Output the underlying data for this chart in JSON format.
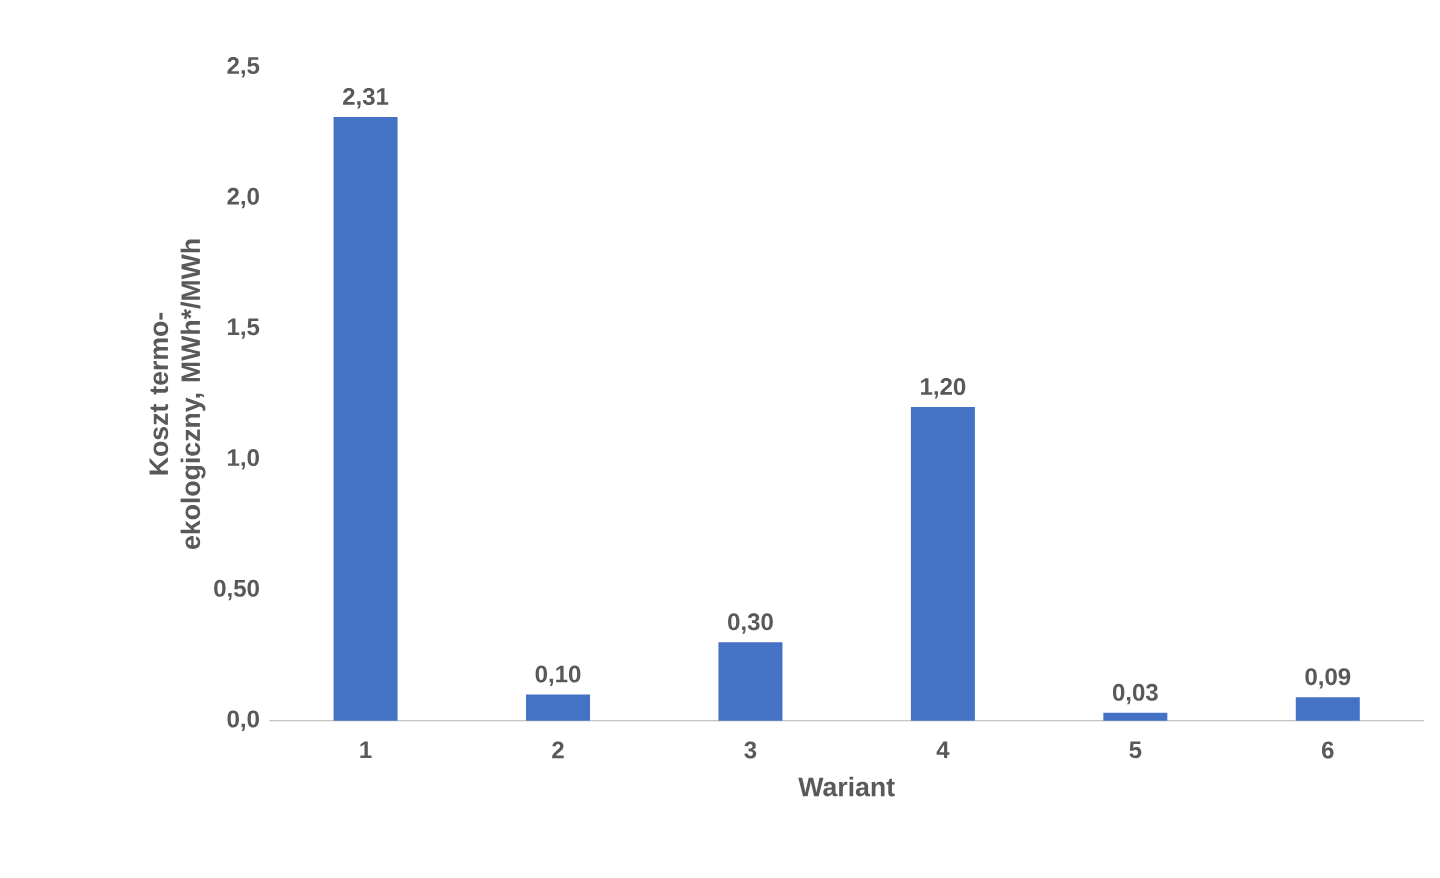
{
  "chart_data": {
    "type": "bar",
    "xlabel": "Wariant",
    "ylabel": "Koszt termo-ekologiczny, MWh*/MWh",
    "categories": [
      "1",
      "2",
      "3",
      "4",
      "5",
      "6"
    ],
    "values": [
      2.31,
      0.1,
      0.3,
      1.2,
      0.03,
      0.09
    ],
    "value_labels": [
      "2,31",
      "0,10",
      "0,30",
      "1,20",
      "0,03",
      "0,09"
    ],
    "color": "#4472c4",
    "ylim": [
      0,
      2.5
    ],
    "yticks": [
      {
        "value": 0,
        "label": "0,0"
      },
      {
        "value": 0.5,
        "label": "0,50"
      },
      {
        "value": 1.0,
        "label": "1,0"
      },
      {
        "value": 1.5,
        "label": "1,5"
      },
      {
        "value": 2.0,
        "label": "2,0"
      },
      {
        "value": 2.5,
        "label": "2,5"
      }
    ]
  }
}
